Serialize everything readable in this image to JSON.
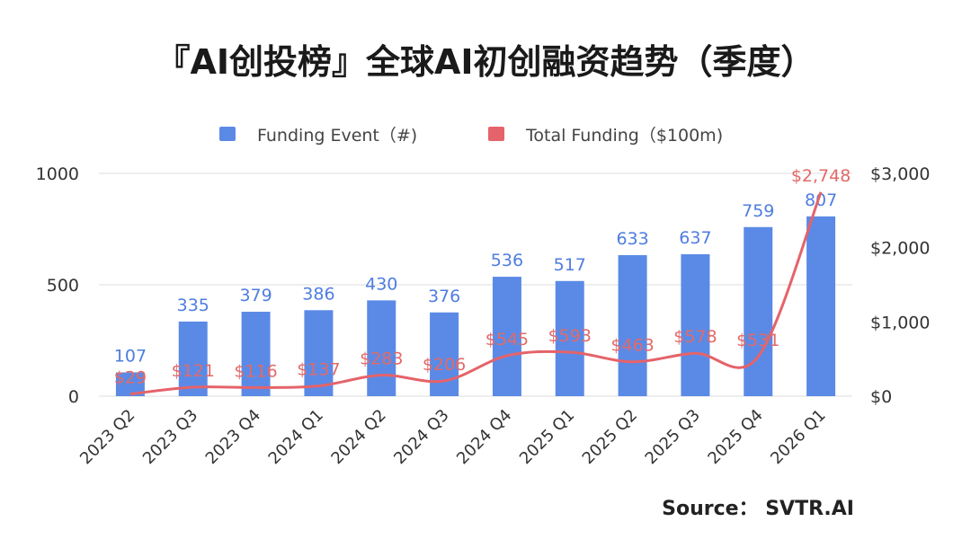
{
  "title": "『AI创投榜』全球AI初创融资趋势（季度）",
  "legend": {
    "bar_label": "Funding Event（#)",
    "line_label": "Total Funding（$100m)"
  },
  "source": "Source： SVTR.AI",
  "colors": {
    "bar": "#5b8ae6",
    "line": "#e5636a",
    "bar_label": "#4f7de0",
    "line_label": "#e26a68",
    "grid": "#dddddd"
  },
  "chart_data": {
    "type": "bar",
    "title": "『AI创投榜』全球AI初创融资趋势（季度）",
    "categories": [
      "2023 Q2",
      "2023 Q3",
      "2023 Q4",
      "2024 Q1",
      "2024 Q2",
      "2024 Q3",
      "2024 Q4",
      "2025 Q1",
      "2025 Q2",
      "2025 Q3",
      "2025 Q4",
      "2026 Q1"
    ],
    "series": [
      {
        "name": "Funding Event（#)",
        "type": "bar",
        "axis": "left",
        "values": [
          107,
          335,
          379,
          386,
          430,
          376,
          536,
          517,
          633,
          637,
          759,
          807
        ],
        "labels": [
          "107",
          "335",
          "379",
          "386",
          "430",
          "376",
          "536",
          "517",
          "633",
          "637",
          "759",
          "807"
        ]
      },
      {
        "name": "Total Funding（$100m)",
        "type": "line",
        "axis": "right",
        "smooth": true,
        "values": [
          29,
          121,
          116,
          137,
          283,
          206,
          545,
          593,
          463,
          578,
          531,
          2748
        ],
        "labels": [
          "$29",
          "$121",
          "$116",
          "$137",
          "$283",
          "$206",
          "$545",
          "$593",
          "$463",
          "$578",
          "$531",
          "$2,748"
        ]
      }
    ],
    "y_left": {
      "ylim": [
        0,
        1000
      ],
      "ticks": [
        0,
        500,
        1000
      ],
      "tick_labels": [
        "0",
        "500",
        "1000"
      ]
    },
    "y_right": {
      "ylim": [
        0,
        3000
      ],
      "ticks": [
        0,
        1000,
        2000,
        3000
      ],
      "tick_labels": [
        "$0",
        "$1,000",
        "$2,000",
        "$3,000"
      ]
    },
    "grid": true,
    "legend_position": "top-center"
  }
}
